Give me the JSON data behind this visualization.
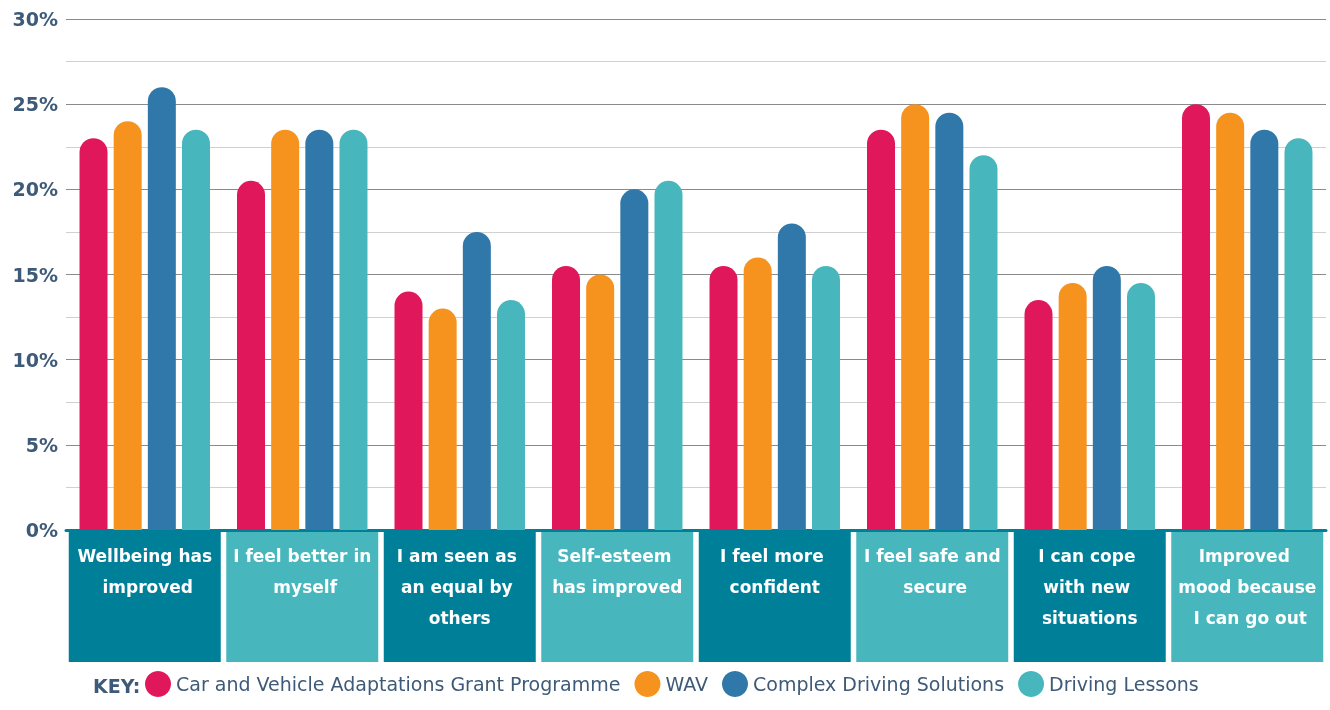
{
  "chart_data": {
    "type": "bar",
    "categories": [
      "Wellbeing has improved",
      "I feel better in myself",
      "I am seen as an equal by others",
      "Self-esteem has improved",
      "I feel more confident",
      "I feel safe and secure",
      "I can cope with new situations",
      "Improved mood because I can go out"
    ],
    "series": [
      {
        "name": "Car and Vehicle Adaptations Grant Programme",
        "color": "#e0175a",
        "values": [
          23,
          20.5,
          14,
          15.5,
          15.5,
          23.5,
          13.5,
          25
        ]
      },
      {
        "name": "WAV",
        "color": "#f6921e",
        "values": [
          24,
          23.5,
          13,
          15,
          16,
          25,
          14.5,
          24.5
        ]
      },
      {
        "name": "Complex Driving Solutions",
        "color": "#3078aa",
        "values": [
          26,
          23.5,
          17.5,
          20,
          18,
          24.5,
          15.5,
          23.5
        ]
      },
      {
        "name": "Driving Lessons",
        "color": "#48b7bd",
        "values": [
          23.5,
          23.5,
          13.5,
          20.5,
          15.5,
          22,
          14.5,
          23
        ]
      }
    ],
    "ylim": [
      0,
      30
    ],
    "yticks": [
      {
        "value": 0,
        "label": "0%"
      },
      {
        "value": 2.5,
        "label": null
      },
      {
        "value": 5,
        "label": "5%"
      },
      {
        "value": 7.5,
        "label": null
      },
      {
        "value": 10,
        "label": "10%"
      },
      {
        "value": 12.5,
        "label": null
      },
      {
        "value": 15,
        "label": "15%"
      },
      {
        "value": 17.5,
        "label": null
      },
      {
        "value": 20,
        "label": "20%"
      },
      {
        "value": 22.5,
        "label": null
      },
      {
        "value": 25,
        "label": "25%"
      },
      {
        "value": 27.5,
        "label": null
      },
      {
        "value": 30,
        "label": "30%"
      }
    ],
    "grid": "y",
    "legend": "bottom",
    "legend_title": "KEY:"
  }
}
